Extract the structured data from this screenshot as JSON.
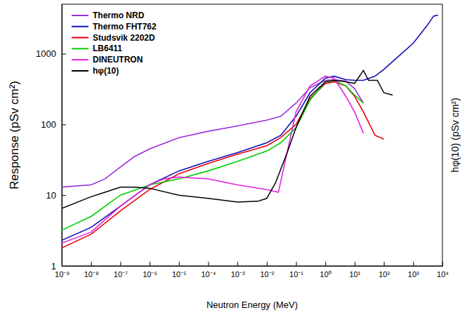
{
  "chart_data": {
    "type": "line",
    "x_label": "Neutron Energy (MeV)",
    "y_label": "Response (pSv cm²)",
    "y2_label": "hφ(10) (pSv cm²)",
    "log": true,
    "legend": "top-left",
    "xlim": [
      1e-09,
      10000
    ],
    "ylim": [
      1,
      5000
    ],
    "xticks": [
      {
        "value": 1e-09,
        "label": "10⁻⁹"
      },
      {
        "value": 1e-08,
        "label": "10⁻⁸"
      },
      {
        "value": 1e-07,
        "label": "10⁻⁷"
      },
      {
        "value": 1e-06,
        "label": "10⁻⁶"
      },
      {
        "value": 1e-05,
        "label": "10⁻⁵"
      },
      {
        "value": 0.0001,
        "label": "10⁻⁴"
      },
      {
        "value": 0.001,
        "label": "10⁻³"
      },
      {
        "value": 0.01,
        "label": "10⁻²"
      },
      {
        "value": 0.1,
        "label": "10⁻¹"
      },
      {
        "value": 1,
        "label": "10⁰"
      },
      {
        "value": 10,
        "label": "10¹"
      },
      {
        "value": 100,
        "label": "10²"
      },
      {
        "value": 1000,
        "label": "10³"
      },
      {
        "value": 10000,
        "label": "10⁴"
      }
    ],
    "yticks": [
      1,
      10,
      100,
      1000
    ],
    "series": [
      {
        "name": "Thermo NRD",
        "color": "#9b30d9",
        "x": [
          1e-09,
          1e-08,
          3e-08,
          1e-07,
          3e-07,
          1e-06,
          1e-05,
          0.0001,
          0.001,
          0.01,
          0.03,
          0.1,
          0.3,
          1,
          2,
          5,
          10,
          20
        ],
        "values": [
          13,
          14,
          17,
          25,
          35,
          45,
          65,
          80,
          95,
          115,
          130,
          200,
          330,
          420,
          430,
          410,
          320,
          200
        ]
      },
      {
        "name": "Thermo FHT762",
        "color": "#1010b0",
        "x": [
          1e-09,
          1e-08,
          1e-07,
          1e-06,
          1e-05,
          0.0001,
          0.001,
          0.01,
          0.03,
          0.1,
          0.3,
          1,
          2,
          5,
          10,
          20,
          50,
          100,
          300,
          1000,
          3000,
          5000,
          7000
        ],
        "values": [
          2.3,
          3.5,
          7,
          14,
          22,
          30,
          40,
          55,
          70,
          130,
          280,
          450,
          480,
          430,
          420,
          420,
          480,
          600,
          900,
          1400,
          2500,
          3400,
          3500
        ]
      },
      {
        "name": "Studsvik 2202D",
        "color": "#e8000b",
        "x": [
          1e-09,
          1e-08,
          1e-07,
          1e-06,
          1e-05,
          0.0001,
          0.001,
          0.01,
          0.03,
          0.1,
          0.3,
          1,
          2,
          5,
          10,
          20,
          50,
          100
        ],
        "values": [
          1.8,
          2.8,
          6,
          12,
          20,
          28,
          38,
          50,
          65,
          100,
          230,
          380,
          400,
          350,
          250,
          150,
          70,
          62
        ]
      },
      {
        "name": "LB6411",
        "color": "#00d000",
        "x": [
          1e-09,
          1e-08,
          1e-07,
          1e-06,
          1e-05,
          0.0001,
          0.001,
          0.01,
          0.03,
          0.1,
          0.3,
          1,
          2,
          5,
          10,
          20
        ],
        "values": [
          3.2,
          5,
          10,
          14,
          17,
          22,
          30,
          42,
          55,
          90,
          220,
          400,
          420,
          350,
          260,
          200
        ]
      },
      {
        "name": "DINEUTRON",
        "color": "#e020e0",
        "x": [
          1e-09,
          1e-08,
          1e-07,
          1e-06,
          3e-06,
          1e-05,
          0.0001,
          0.001,
          0.01,
          0.025,
          0.1,
          0.3,
          1,
          2,
          5,
          10,
          20
        ],
        "values": [
          2.1,
          3,
          7,
          14,
          17,
          18,
          17,
          14,
          12,
          11,
          150,
          350,
          480,
          450,
          250,
          150,
          75
        ]
      },
      {
        "name": "hφ(10)",
        "color": "#000000",
        "x": [
          1e-09,
          1e-08,
          3e-08,
          1e-07,
          3e-07,
          1e-06,
          1e-05,
          0.0001,
          0.001,
          0.005,
          0.01,
          0.02,
          0.05,
          0.1,
          0.3,
          1,
          2,
          5,
          10,
          20,
          30,
          60,
          100,
          200
        ],
        "values": [
          6.5,
          9.5,
          11,
          13,
          13,
          12.5,
          10,
          9,
          8,
          8.2,
          9,
          15,
          40,
          90,
          250,
          400,
          420,
          400,
          380,
          580,
          420,
          420,
          280,
          260
        ]
      }
    ]
  }
}
